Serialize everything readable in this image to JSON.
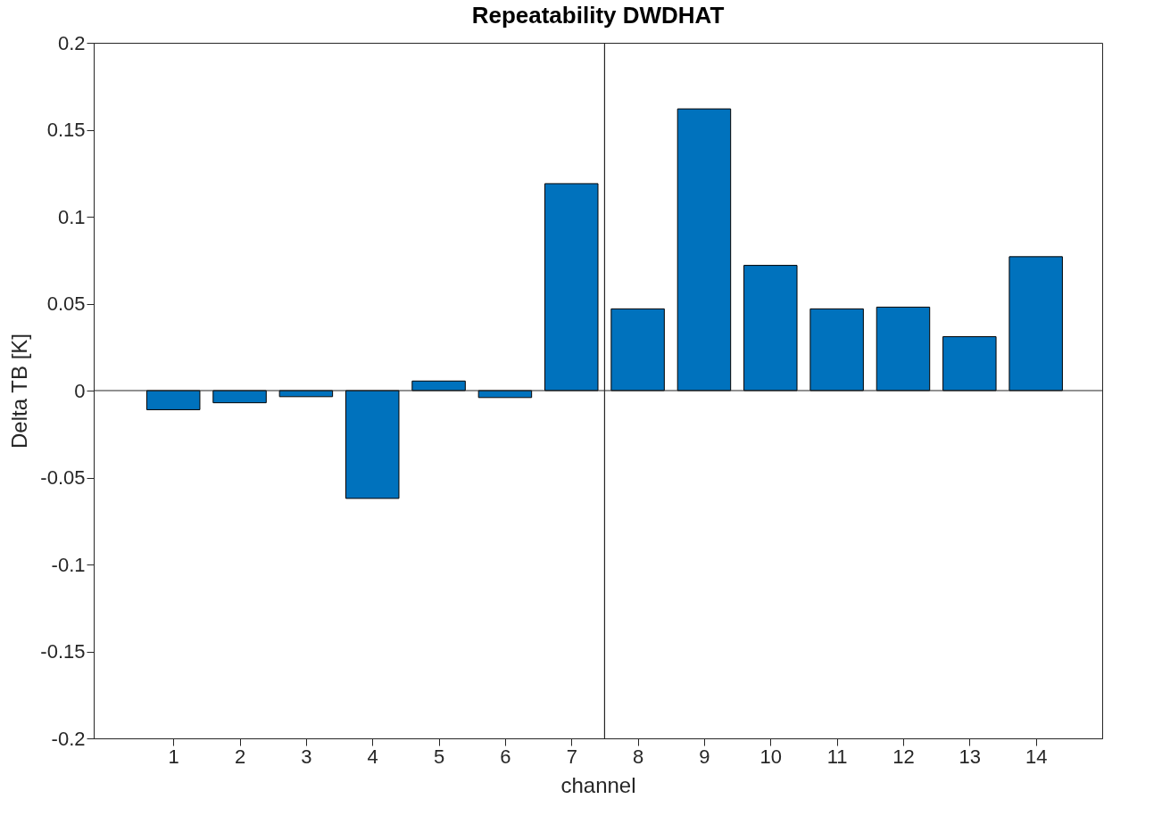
{
  "chart_data": {
    "type": "bar",
    "title": "Repeatability DWDHAT",
    "xlabel": "channel",
    "ylabel": "Delta TB [K]",
    "x": [
      1,
      2,
      3,
      4,
      5,
      6,
      7,
      8,
      9,
      10,
      11,
      12,
      13,
      14
    ],
    "values": [
      -0.011,
      -0.007,
      -0.0035,
      -0.062,
      0.0055,
      -0.004,
      0.119,
      0.047,
      0.162,
      0.072,
      0.047,
      0.048,
      0.031,
      0.077
    ],
    "color": "#0072bd",
    "xlim": [
      -0.2,
      15
    ],
    "xticks": [
      1,
      2,
      3,
      4,
      5,
      6,
      7,
      8,
      9,
      10,
      11,
      12,
      13,
      14
    ],
    "ylim": [
      -0.2,
      0.2
    ],
    "yticks": [
      -0.2,
      -0.15,
      -0.1,
      -0.05,
      0,
      0.05,
      0.1,
      0.15,
      0.2
    ],
    "ref_lines": [
      {
        "axis": "x",
        "value": 7.5,
        "label": null
      },
      {
        "axis": "y",
        "value": 0,
        "label": null
      }
    ],
    "grid": false
  }
}
